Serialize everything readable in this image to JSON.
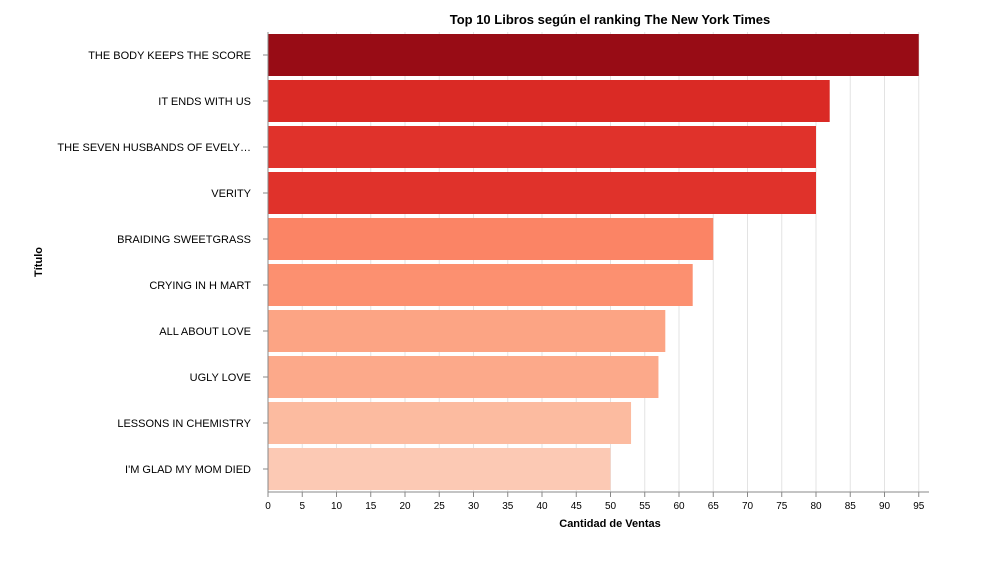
{
  "chart_data": {
    "type": "bar",
    "orientation": "horizontal",
    "title": "Top 10 Libros según el ranking The New York Times",
    "xlabel": "Cantidad de Ventas",
    "ylabel": "Título",
    "xlim": [
      0,
      96
    ],
    "x_ticks": [
      0,
      5,
      10,
      15,
      20,
      25,
      30,
      35,
      40,
      45,
      50,
      55,
      60,
      65,
      70,
      75,
      80,
      85,
      90,
      95
    ],
    "grid": "vertical",
    "categories": [
      "THE BODY KEEPS THE SCORE",
      "IT ENDS WITH US",
      "THE SEVEN HUSBANDS OF EVELY…",
      "VERITY",
      "BRAIDING SWEETGRASS",
      "CRYING IN H MART",
      "ALL ABOUT LOVE",
      "UGLY LOVE",
      "LESSONS IN CHEMISTRY",
      "I'M GLAD MY MOM DIED"
    ],
    "values": [
      95,
      82,
      80,
      80,
      65,
      62,
      58,
      57,
      53,
      50
    ],
    "colors": [
      "#980c15",
      "#da2a25",
      "#e0322b",
      "#e0322b",
      "#fb8465",
      "#fc9070",
      "#fca484",
      "#fca98a",
      "#fcbba0",
      "#fcc9b4"
    ]
  }
}
